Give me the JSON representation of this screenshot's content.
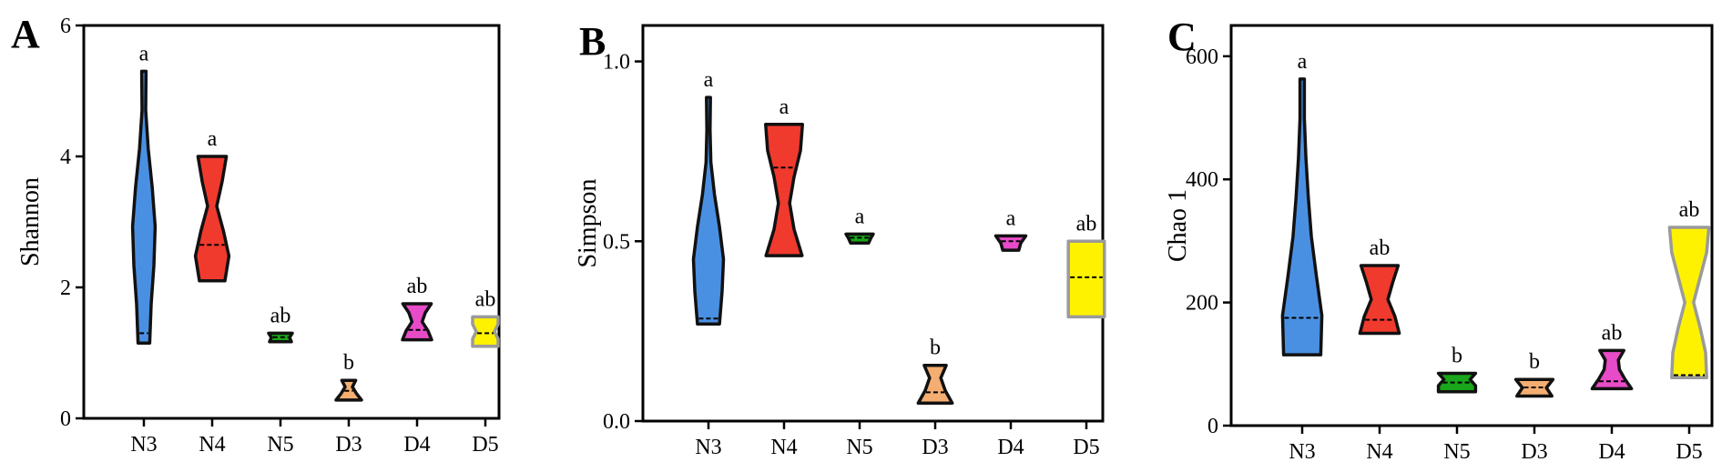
{
  "chart_data": [
    {
      "type": "violin",
      "panel": "A",
      "ylabel": "Shannon",
      "ylim": [
        0,
        6
      ],
      "yticks": [
        0,
        2,
        4,
        6
      ],
      "categories": [
        "N3",
        "N4",
        "N5",
        "D3",
        "D4",
        "D5"
      ],
      "series": [
        {
          "category": "N3",
          "min": 1.15,
          "max": 5.3,
          "median": 1.3,
          "shape": [
            0.32,
            0.4,
            0.55,
            0.62,
            0.46,
            0.24,
            0.1,
            0.12
          ],
          "color": "#4A90E2",
          "label": "a"
        },
        {
          "category": "N4",
          "min": 2.1,
          "max": 4.0,
          "median": 2.65,
          "shape": [
            0.7,
            0.92,
            0.62,
            0.25,
            0.55,
            0.78
          ],
          "color": "#F03A2E",
          "label": "a"
        },
        {
          "category": "N5",
          "min": 1.17,
          "max": 1.3,
          "median": 1.24,
          "shape": [
            0.6,
            0.5,
            0.65
          ],
          "color": "#1AA51A",
          "label": "ab"
        },
        {
          "category": "D3",
          "min": 0.28,
          "max": 0.58,
          "median": 0.42,
          "shape": [
            0.7,
            0.42,
            0.2,
            0.38
          ],
          "color": "#F4AE72",
          "label": "b"
        },
        {
          "category": "D4",
          "min": 1.2,
          "max": 1.75,
          "median": 1.35,
          "shape": [
            0.8,
            0.6,
            0.28,
            0.45,
            0.78
          ],
          "color": "#E84BC8",
          "label": "ab"
        },
        {
          "category": "D5",
          "min": 1.1,
          "max": 1.55,
          "median": 1.3,
          "shape": [
            0.7,
            0.7,
            0.5,
            0.7,
            0.7
          ],
          "color": "#FFF200",
          "label": "ab"
        }
      ]
    },
    {
      "type": "violin",
      "panel": "B",
      "ylabel": "Simpson",
      "ylim": [
        0,
        1.1
      ],
      "yticks": [
        0.0,
        0.5,
        1.0
      ],
      "ytick_labels": [
        "0.0",
        "0.5",
        "1.0"
      ],
      "categories": [
        "N3",
        "N4",
        "N5",
        "D3",
        "D4",
        "D5"
      ],
      "series": [
        {
          "category": "N3",
          "min": 0.27,
          "max": 0.9,
          "median": 0.285,
          "shape": [
            0.55,
            0.68,
            0.75,
            0.55,
            0.3,
            0.12,
            0.08,
            0.1
          ],
          "color": "#4A90E2",
          "label": "a"
        },
        {
          "category": "N4",
          "min": 0.46,
          "max": 0.825,
          "median": 0.705,
          "shape": [
            0.9,
            0.5,
            0.28,
            0.5,
            0.82,
            0.92
          ],
          "color": "#F03A2E",
          "label": "a"
        },
        {
          "category": "N5",
          "min": 0.495,
          "max": 0.52,
          "median": 0.51,
          "shape": [
            0.45,
            0.55,
            0.68
          ],
          "color": "#1AA51A",
          "label": "a"
        },
        {
          "category": "D3",
          "min": 0.05,
          "max": 0.155,
          "median": 0.08,
          "shape": [
            0.85,
            0.5,
            0.28,
            0.55
          ],
          "color": "#F4AE72",
          "label": "b"
        },
        {
          "category": "D4",
          "min": 0.475,
          "max": 0.515,
          "median": 0.5,
          "shape": [
            0.4,
            0.5,
            0.75
          ],
          "color": "#E84BC8",
          "label": "a"
        },
        {
          "category": "D5",
          "min": 0.29,
          "max": 0.5,
          "median": 0.4,
          "shape": [
            0.9,
            0.9,
            0.9,
            0.9,
            0.9
          ],
          "color": "#FFF200",
          "label": "ab"
        }
      ]
    },
    {
      "type": "violin",
      "panel": "C",
      "ylabel": "Chao 1",
      "ylim": [
        0,
        650
      ],
      "yticks": [
        0,
        200,
        400,
        600
      ],
      "categories": [
        "N3",
        "N4",
        "N5",
        "D3",
        "D4",
        "D5"
      ],
      "series": [
        {
          "category": "N3",
          "min": 115,
          "max": 563,
          "median": 175,
          "shape": [
            0.85,
            0.9,
            0.65,
            0.42,
            0.28,
            0.17,
            0.1,
            0.1
          ],
          "color": "#4A90E2",
          "label": "a"
        },
        {
          "category": "N4",
          "min": 150,
          "max": 260,
          "median": 172,
          "shape": [
            0.9,
            0.7,
            0.38,
            0.6,
            0.85
          ],
          "color": "#F03A2E",
          "label": "ab"
        },
        {
          "category": "N5",
          "min": 55,
          "max": 85,
          "median": 70,
          "shape": [
            0.85,
            0.85,
            0.6,
            0.85
          ],
          "color": "#1AA51A",
          "label": "b"
        },
        {
          "category": "D3",
          "min": 48,
          "max": 75,
          "median": 62,
          "shape": [
            0.8,
            0.55,
            0.85
          ],
          "color": "#F4AE72",
          "label": "b"
        },
        {
          "category": "D4",
          "min": 60,
          "max": 122,
          "median": 72,
          "shape": [
            0.9,
            0.6,
            0.35,
            0.3,
            0.55
          ],
          "color": "#E84BC8",
          "label": "ab"
        },
        {
          "category": "D5",
          "min": 78,
          "max": 322,
          "median": 82,
          "shape": [
            0.8,
            0.75,
            0.5,
            0.2,
            0.5,
            0.8,
            0.9
          ],
          "color": "#FFF200",
          "label": "ab"
        }
      ]
    }
  ]
}
